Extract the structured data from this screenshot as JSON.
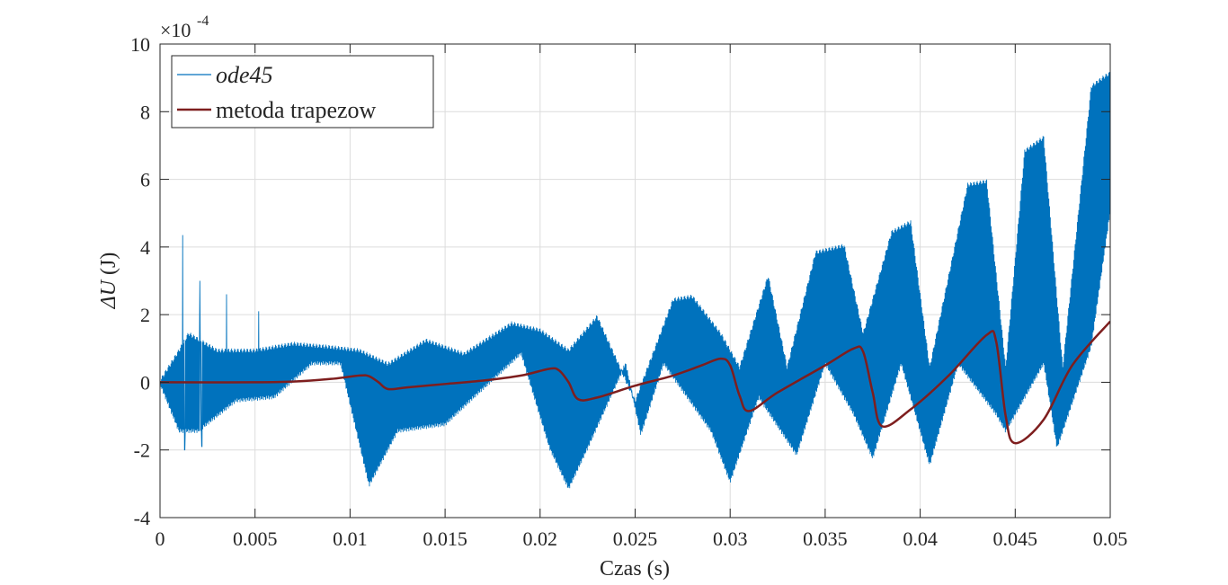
{
  "chart_data": {
    "type": "line",
    "xlabel": "Czas (s)",
    "ylabel_prefix": "ΔU",
    "ylabel_suffix": " (J)",
    "y_exponent": {
      "base": "×10",
      "power": "-4"
    },
    "xlim": [
      0,
      0.05
    ],
    "ylim": [
      -4,
      10
    ],
    "x_ticks": [
      0,
      0.005,
      0.01,
      0.015,
      0.02,
      0.025,
      0.03,
      0.035,
      0.04,
      0.045,
      0.05
    ],
    "x_tick_labels": [
      "0",
      "0.005",
      "0.01",
      "0.015",
      "0.02",
      "0.025",
      "0.03",
      "0.035",
      "0.04",
      "0.045",
      "0.05"
    ],
    "y_ticks": [
      -4,
      -2,
      0,
      2,
      4,
      6,
      8,
      10
    ],
    "y_tick_labels": [
      "-4",
      "-2",
      "0",
      "2",
      "4",
      "6",
      "8",
      "10"
    ],
    "grid": true,
    "legend_position": "top-left",
    "series": [
      {
        "name": "ode45",
        "color": "#0072bd",
        "style": "oscillating",
        "upper_envelope": [
          [
            0,
            0.1
          ],
          [
            0.001,
            1.0
          ],
          [
            0.0015,
            1.5
          ],
          [
            0.003,
            1.0
          ],
          [
            0.005,
            1.0
          ],
          [
            0.007,
            1.2
          ],
          [
            0.009,
            1.1
          ],
          [
            0.0105,
            1.0
          ],
          [
            0.012,
            0.6
          ],
          [
            0.014,
            1.3
          ],
          [
            0.016,
            0.9
          ],
          [
            0.0185,
            1.8
          ],
          [
            0.02,
            1.6
          ],
          [
            0.0215,
            1.0
          ],
          [
            0.023,
            2.0
          ],
          [
            0.025,
            -0.5
          ],
          [
            0.027,
            2.5
          ],
          [
            0.028,
            2.6
          ],
          [
            0.0295,
            1.5
          ],
          [
            0.0305,
            0.5
          ],
          [
            0.032,
            3.2
          ],
          [
            0.033,
            0.5
          ],
          [
            0.0345,
            3.9
          ],
          [
            0.036,
            4.1
          ],
          [
            0.037,
            1.5
          ],
          [
            0.0385,
            4.5
          ],
          [
            0.0395,
            4.8
          ],
          [
            0.0405,
            0.5
          ],
          [
            0.0425,
            5.9
          ],
          [
            0.0435,
            6.0
          ],
          [
            0.0445,
            0.5
          ],
          [
            0.0455,
            6.9
          ],
          [
            0.0465,
            7.3
          ],
          [
            0.0475,
            0.5
          ],
          [
            0.049,
            8.8
          ],
          [
            0.0497,
            9.1
          ],
          [
            0.05,
            9.2
          ]
        ],
        "lower_envelope": [
          [
            0,
            -0.1
          ],
          [
            0.001,
            -1.5
          ],
          [
            0.002,
            -1.5
          ],
          [
            0.004,
            -0.6
          ],
          [
            0.006,
            -0.5
          ],
          [
            0.008,
            0.5
          ],
          [
            0.0095,
            0.5
          ],
          [
            0.011,
            -3.1
          ],
          [
            0.0125,
            -1.5
          ],
          [
            0.015,
            -1.3
          ],
          [
            0.0165,
            -0.5
          ],
          [
            0.019,
            0.8
          ],
          [
            0.0205,
            -2.0
          ],
          [
            0.0215,
            -3.2
          ],
          [
            0.0225,
            -2.0
          ],
          [
            0.0245,
            0.5
          ],
          [
            0.0253,
            -1.6
          ],
          [
            0.0265,
            0.5
          ],
          [
            0.029,
            -1.5
          ],
          [
            0.03,
            -3.0
          ],
          [
            0.0315,
            -0.5
          ],
          [
            0.0335,
            -2.2
          ],
          [
            0.035,
            0.5
          ],
          [
            0.0365,
            -1.0
          ],
          [
            0.0375,
            -2.3
          ],
          [
            0.039,
            0.5
          ],
          [
            0.0405,
            -2.5
          ],
          [
            0.042,
            0.5
          ],
          [
            0.044,
            -1.0
          ],
          [
            0.0445,
            -1.5
          ],
          [
            0.0465,
            0.5
          ],
          [
            0.0472,
            -2.0
          ],
          [
            0.049,
            1.0
          ],
          [
            0.05,
            5.0
          ]
        ],
        "peaks": [
          [
            0.0012,
            4.35
          ],
          [
            0.0021,
            3.0
          ],
          [
            0.0022,
            -1.9
          ],
          [
            0.0035,
            2.6
          ],
          [
            0.0052,
            2.1
          ],
          [
            0.0013,
            -2.0
          ]
        ]
      },
      {
        "name": "metoda trapezow",
        "color": "#7e1e1e",
        "x": [
          0,
          0.005,
          0.007,
          0.009,
          0.0105,
          0.011,
          0.0115,
          0.012,
          0.013,
          0.015,
          0.017,
          0.019,
          0.0205,
          0.021,
          0.0215,
          0.022,
          0.023,
          0.025,
          0.027,
          0.0285,
          0.0295,
          0.03,
          0.0305,
          0.031,
          0.0325,
          0.035,
          0.0365,
          0.037,
          0.0375,
          0.038,
          0.0395,
          0.0415,
          0.0435,
          0.044,
          0.0445,
          0.045,
          0.0465,
          0.048,
          0.05
        ],
        "y": [
          0,
          0,
          0.02,
          0.1,
          0.2,
          0.18,
          0,
          -0.2,
          -0.15,
          -0.05,
          0.05,
          0.2,
          0.4,
          0.35,
          0,
          -0.5,
          -0.45,
          -0.1,
          0.2,
          0.5,
          0.7,
          0.5,
          -0.4,
          -0.85,
          -0.3,
          0.5,
          1.0,
          0.9,
          -0.3,
          -1.3,
          -0.8,
          0.2,
          1.4,
          1.2,
          -1.0,
          -1.8,
          -1.1,
          0.5,
          1.8
        ]
      }
    ]
  }
}
